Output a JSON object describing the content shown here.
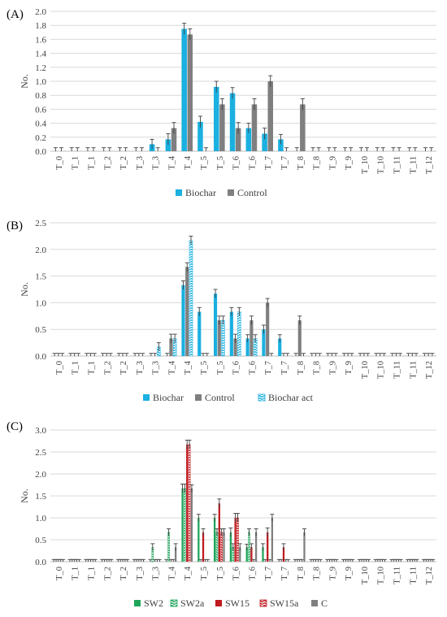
{
  "chart_data": [
    {
      "type": "bar",
      "panel_label": "(A)",
      "ylabel": "No.",
      "ylim": [
        0,
        2.0
      ],
      "ytick_step": 0.2,
      "ytick_decimals": 1,
      "grid": "horizontal",
      "legend_position": "bottom",
      "categories": [
        "T_0",
        "T_1",
        "T_1",
        "T_2",
        "T_2",
        "T_3",
        "T_3",
        "T_4",
        "T_4",
        "T_5",
        "T_5",
        "T_6",
        "T_6",
        "T_7",
        "T_7",
        "T_8",
        "T_8",
        "T_9",
        "T_9",
        "T_10",
        "T_10",
        "T_11",
        "T_11",
        "T_12"
      ],
      "series": [
        {
          "name": "Biochar",
          "color": "#1ab0e0",
          "pattern": "solid",
          "values": [
            0,
            0,
            0,
            0,
            0,
            0,
            0.1,
            0.17,
            1.75,
            0.42,
            0.92,
            0.83,
            0.33,
            0.25,
            0.17,
            0,
            0,
            0,
            0,
            0,
            0,
            0,
            0,
            0
          ],
          "errors": [
            0.05,
            0.05,
            0.05,
            0.05,
            0.05,
            0.05,
            0.07,
            0.08,
            0.08,
            0.08,
            0.08,
            0.08,
            0.07,
            0.08,
            0.07,
            0.05,
            0.05,
            0.05,
            0.05,
            0.05,
            0.05,
            0.05,
            0.05,
            0.05
          ]
        },
        {
          "name": "Control",
          "color": "#7f7f7f",
          "pattern": "solid",
          "values": [
            0,
            0,
            0,
            0,
            0,
            0,
            0,
            0.33,
            1.67,
            0,
            0.67,
            0.33,
            0.67,
            1.0,
            0,
            0.67,
            0,
            0,
            0,
            0,
            0,
            0,
            0,
            0
          ],
          "errors": [
            0.05,
            0.05,
            0.05,
            0.05,
            0.05,
            0.05,
            0.05,
            0.08,
            0.08,
            0.05,
            0.08,
            0.08,
            0.08,
            0.08,
            0.05,
            0.08,
            0.05,
            0.05,
            0.05,
            0.05,
            0.05,
            0.05,
            0.05,
            0.05
          ]
        }
      ]
    },
    {
      "type": "bar",
      "panel_label": "(B)",
      "ylabel": "No.",
      "ylim": [
        0,
        2.5
      ],
      "ytick_step": 0.5,
      "ytick_decimals": 1,
      "grid": "horizontal",
      "legend_position": "bottom",
      "categories": [
        "T_0",
        "T_1",
        "T_1",
        "T_2",
        "T_2",
        "T_3",
        "T_3",
        "T_4",
        "T_4",
        "T_5",
        "T_5",
        "T_6",
        "T_6",
        "T_7",
        "T_7",
        "T_8",
        "T_8",
        "T_9",
        "T_9",
        "T_10",
        "T_10",
        "T_11",
        "T_11",
        "T_12"
      ],
      "series": [
        {
          "name": "Biochar",
          "color": "#1ab0e0",
          "pattern": "solid",
          "values": [
            0,
            0,
            0,
            0,
            0,
            0,
            0,
            0,
            1.33,
            0.83,
            1.17,
            0.83,
            0.33,
            0.5,
            0.33,
            0,
            0,
            0,
            0,
            0,
            0,
            0,
            0,
            0
          ],
          "errors": [
            0.05,
            0.05,
            0.05,
            0.05,
            0.05,
            0.05,
            0.05,
            0.05,
            0.08,
            0.08,
            0.08,
            0.08,
            0.07,
            0.08,
            0.07,
            0.05,
            0.05,
            0.05,
            0.05,
            0.05,
            0.05,
            0.05,
            0.05,
            0.05
          ]
        },
        {
          "name": "Control",
          "color": "#7f7f7f",
          "pattern": "solid",
          "values": [
            0,
            0,
            0,
            0,
            0,
            0,
            0,
            0.33,
            1.67,
            0,
            0.67,
            0.33,
            0.67,
            1.0,
            0,
            0.67,
            0,
            0,
            0,
            0,
            0,
            0,
            0,
            0
          ],
          "errors": [
            0.05,
            0.05,
            0.05,
            0.05,
            0.05,
            0.05,
            0.05,
            0.08,
            0.08,
            0.05,
            0.08,
            0.08,
            0.08,
            0.08,
            0.05,
            0.08,
            0.05,
            0.05,
            0.05,
            0.05,
            0.05,
            0.05,
            0.05,
            0.05
          ]
        },
        {
          "name": "Biochar act",
          "color": "#1ab0e0",
          "pattern": "wave",
          "values": [
            0,
            0,
            0,
            0,
            0,
            0,
            0.17,
            0.33,
            2.17,
            0,
            0.67,
            0.83,
            0.33,
            0,
            0,
            0,
            0,
            0,
            0,
            0,
            0,
            0,
            0,
            0
          ],
          "errors": [
            0.05,
            0.05,
            0.05,
            0.05,
            0.05,
            0.05,
            0.08,
            0.08,
            0.08,
            0.05,
            0.08,
            0.08,
            0.07,
            0.05,
            0.05,
            0.05,
            0.05,
            0.05,
            0.05,
            0.05,
            0.05,
            0.05,
            0.05,
            0.05
          ]
        }
      ]
    },
    {
      "type": "bar",
      "panel_label": "(C)",
      "ylabel": "No.",
      "ylim": [
        0,
        3.0
      ],
      "ytick_step": 0.5,
      "ytick_decimals": 1,
      "grid": "horizontal",
      "legend_position": "bottom",
      "categories": [
        "T_0",
        "T_1",
        "T_1",
        "T_2",
        "T_2",
        "T_3",
        "T_3",
        "T_4",
        "T_4",
        "T_5",
        "T_5",
        "T_6",
        "T_6",
        "T_7",
        "T_7",
        "T_8",
        "T_8",
        "T_9",
        "T_9",
        "T_10",
        "T_10",
        "T_11",
        "T_11",
        "T_12"
      ],
      "series": [
        {
          "name": "SW2",
          "color": "#1fa55a",
          "pattern": "solid",
          "values": [
            0,
            0,
            0,
            0,
            0,
            0,
            0,
            0,
            1.67,
            1.0,
            1.0,
            0.67,
            0.33,
            0.33,
            0,
            0,
            0,
            0,
            0,
            0,
            0,
            0,
            0,
            0
          ],
          "errors": [
            0.05,
            0.05,
            0.05,
            0.05,
            0.05,
            0.05,
            0.05,
            0.05,
            0.1,
            0.08,
            0.08,
            0.1,
            0.07,
            0.08,
            0.05,
            0.05,
            0.05,
            0.05,
            0.05,
            0.05,
            0.05,
            0.05,
            0.05,
            0.05
          ]
        },
        {
          "name": "SW2a",
          "color": "#1fa55a",
          "pattern": "wave",
          "values": [
            0,
            0,
            0,
            0,
            0,
            0,
            0.33,
            0.67,
            1.67,
            0,
            0.67,
            0.33,
            0.67,
            0,
            0,
            0,
            0,
            0,
            0,
            0,
            0,
            0,
            0,
            0
          ],
          "errors": [
            0.05,
            0.05,
            0.05,
            0.05,
            0.05,
            0.05,
            0.08,
            0.08,
            0.1,
            0.05,
            0.08,
            0.08,
            0.08,
            0.05,
            0.05,
            0.05,
            0.05,
            0.05,
            0.05,
            0.05,
            0.05,
            0.05,
            0.05,
            0.05
          ]
        },
        {
          "name": "SW15",
          "color": "#c0191e",
          "pattern": "solid",
          "values": [
            0,
            0,
            0,
            0,
            0,
            0,
            0,
            0,
            2.67,
            0.67,
            1.33,
            1.0,
            0.33,
            0.67,
            0.33,
            0,
            0,
            0,
            0,
            0,
            0,
            0,
            0,
            0
          ],
          "errors": [
            0.05,
            0.05,
            0.05,
            0.05,
            0.05,
            0.05,
            0.05,
            0.05,
            0.1,
            0.08,
            0.1,
            0.1,
            0.08,
            0.1,
            0.08,
            0.05,
            0.05,
            0.05,
            0.05,
            0.05,
            0.05,
            0.05,
            0.05,
            0.05
          ]
        },
        {
          "name": "SW15a",
          "color": "#c0191e",
          "pattern": "wave",
          "values": [
            0,
            0,
            0,
            0,
            0,
            0,
            0,
            0,
            2.67,
            0,
            0.67,
            1.0,
            0,
            0,
            0,
            0,
            0,
            0,
            0,
            0,
            0,
            0,
            0,
            0
          ],
          "errors": [
            0.05,
            0.05,
            0.05,
            0.05,
            0.05,
            0.05,
            0.05,
            0.05,
            0.1,
            0.05,
            0.08,
            0.1,
            0.05,
            0.05,
            0.05,
            0.05,
            0.05,
            0.05,
            0.05,
            0.05,
            0.05,
            0.05,
            0.05,
            0.05
          ]
        },
        {
          "name": "C",
          "color": "#7f7f7f",
          "pattern": "solid",
          "values": [
            0,
            0,
            0,
            0,
            0,
            0,
            0,
            0.33,
            1.67,
            0,
            0.67,
            0.33,
            0.67,
            1.0,
            0,
            0.67,
            0,
            0,
            0,
            0,
            0,
            0,
            0,
            0
          ],
          "errors": [
            0.05,
            0.05,
            0.05,
            0.05,
            0.05,
            0.05,
            0.05,
            0.08,
            0.08,
            0.05,
            0.08,
            0.08,
            0.08,
            0.08,
            0.05,
            0.08,
            0.05,
            0.05,
            0.05,
            0.05,
            0.05,
            0.05,
            0.05,
            0.05
          ]
        }
      ]
    }
  ]
}
